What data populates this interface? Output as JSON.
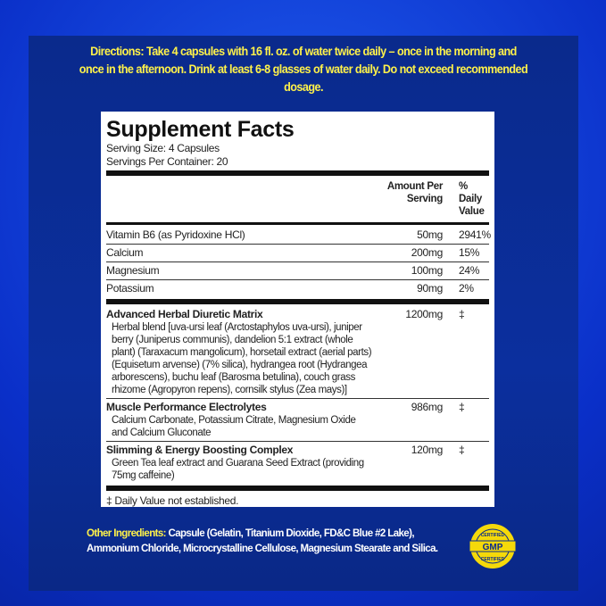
{
  "directions": "Directions: Take 4 capsules with 16 fl. oz. of water twice daily – once in the morning and once in the afternoon. Drink at least 6-8 glasses of water daily.  Do not exceed recommended dosage.",
  "facts": {
    "title": "Supplement Facts",
    "serving_size": "Serving Size: 4 Capsules",
    "servings_per_container": "Servings Per Container: 20",
    "col_amount": "Amount Per Serving",
    "col_dv": "% Daily Value",
    "rows": [
      {
        "name": "Vitamin B6 (as Pyridoxine HCl)",
        "amount": "50mg",
        "dv": "2941%"
      },
      {
        "name": "Calcium",
        "amount": "200mg",
        "dv": "15%"
      },
      {
        "name": "Magnesium",
        "amount": "100mg",
        "dv": "24%"
      },
      {
        "name": "Potassium",
        "amount": "90mg",
        "dv": "2%"
      }
    ],
    "blends": [
      {
        "name": "Advanced Herbal Diuretic Matrix",
        "amount": "1200mg",
        "dv": "‡",
        "desc": "Herbal blend [uva-ursi leaf (Arctostaphylos uva-ursi), juniper berry (Juniperus communis), dandelion 5:1 extract (whole plant) (Taraxacum mangolicum), horsetail extract (aerial parts) (Equisetum arvense) (7% silica), hydrangea root (Hydrangea arborescens), buchu leaf (Barosma betulina), couch grass rhizome (Agropyron repens), cornsilk stylus (Zea mays)]"
      },
      {
        "name": "Muscle Performance Electrolytes",
        "amount": "986mg",
        "dv": "‡",
        "desc": "Calcium Carbonate, Potassium Citrate, Magnesium Oxide and Calcium Gluconate"
      },
      {
        "name": "Slimming & Energy Boosting Complex",
        "amount": "120mg",
        "dv": "‡",
        "desc": "Green Tea leaf extract and Guarana Seed Extract (providing 75mg caffeine)"
      }
    ],
    "footnote": "‡ Daily Value not established."
  },
  "other_ingredients": {
    "label": "Other Ingredients:",
    "text": " Capsule (Gelatin, Titanium Dioxide,  FD&C Blue #2 Lake), Ammonium Chloride, Microcrystalline Cellulose, Magnesium Stearate and Silica."
  },
  "badge": {
    "top": "CERTIFIED",
    "middle": "GMP",
    "bottom": "CERTIFIED",
    "color": "#f5d90a"
  }
}
